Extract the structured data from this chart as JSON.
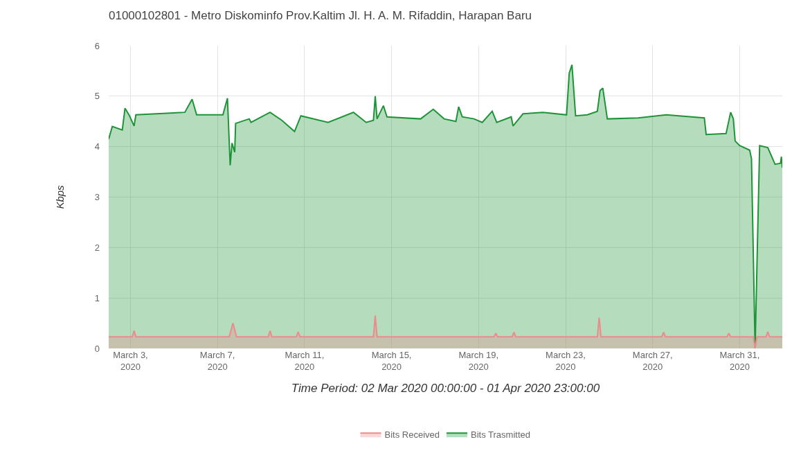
{
  "chart_data": {
    "type": "area",
    "title": "01000102801 - Metro Diskominfo Prov.Kaltim Jl. H. A. M. Rifaddin, Harapan Baru",
    "xlabel": "Time Period: 02 Mar 2020 00:00:00 - 01 Apr 2020 23:00:00",
    "ylabel": "Kbps",
    "xlim": [
      "2020-03-02T00:00",
      "2020-04-01T23:00"
    ],
    "xticks": [
      {
        "value": "2020-03-03",
        "label": "March 3, 2020"
      },
      {
        "value": "2020-03-07",
        "label": "March 7, 2020"
      },
      {
        "value": "2020-03-11",
        "label": "March 11, 2020"
      },
      {
        "value": "2020-03-15",
        "label": "March 15, 2020"
      },
      {
        "value": "2020-03-19",
        "label": "March 19, 2020"
      },
      {
        "value": "2020-03-23",
        "label": "March 23, 2020"
      },
      {
        "value": "2020-03-27",
        "label": "March 27, 2020"
      },
      {
        "value": "2020-03-31",
        "label": "March 31, 2020"
      }
    ],
    "ylim": [
      0,
      6
    ],
    "yticks": [
      0,
      1,
      2,
      3,
      4,
      5,
      6
    ],
    "grid": true,
    "legend": "bottom",
    "series": [
      {
        "name": "Bits Trasmitted",
        "color": "#1e9438",
        "x": [
          "2020-03-02T00:00",
          "2020-03-02T04:00",
          "2020-03-02T15:00",
          "2020-03-02T18:00",
          "2020-03-02T23:00",
          "2020-03-03T04:00",
          "2020-03-03T06:00",
          "2020-03-05T12:00",
          "2020-03-05T20:00",
          "2020-03-06T01:00",
          "2020-03-07T06:00",
          "2020-03-07T11:00",
          "2020-03-07T14:00",
          "2020-03-07T16:00",
          "2020-03-07T19:00",
          "2020-03-07T20:00",
          "2020-03-08T11:00",
          "2020-03-08T13:00",
          "2020-03-09T10:00",
          "2020-03-09T23:00",
          "2020-03-10T13:00",
          "2020-03-10T20:00",
          "2020-03-12T02:00",
          "2020-03-13T06:00",
          "2020-03-13T20:00",
          "2020-03-14T04:00",
          "2020-03-14T06:00",
          "2020-03-14T08:00",
          "2020-03-14T15:00",
          "2020-03-14T19:00",
          "2020-03-16T08:00",
          "2020-03-16T22:00",
          "2020-03-17T10:00",
          "2020-03-17T23:00",
          "2020-03-18T02:00",
          "2020-03-18T06:00",
          "2020-03-18T19:00",
          "2020-03-19T04:00",
          "2020-03-19T15:00",
          "2020-03-19T20:00",
          "2020-03-20T12:00",
          "2020-03-20T14:00",
          "2020-03-21T01:00",
          "2020-03-21T23:00",
          "2020-03-23T01:00",
          "2020-03-23T04:00",
          "2020-03-23T07:00",
          "2020-03-23T11:00",
          "2020-03-24T00:00",
          "2020-03-24T11:00",
          "2020-03-24T14:00",
          "2020-03-24T17:00",
          "2020-03-24T22:00",
          "2020-03-26T08:00",
          "2020-03-27T15:00",
          "2020-03-29T09:00",
          "2020-03-29T11:00",
          "2020-03-30T09:00",
          "2020-03-30T14:00",
          "2020-03-30T17:00",
          "2020-03-30T19:00",
          "2020-03-31T00:00",
          "2020-03-31T11:00",
          "2020-03-31T13:00",
          "2020-03-31T17:00",
          "2020-03-31T22:00",
          "2020-04-01T07:00",
          "2020-04-01T15:00",
          "2020-04-01T21:00",
          "2020-04-01T22:00",
          "2020-04-01T23:00"
        ],
        "values": [
          4.15,
          4.4,
          4.33,
          4.76,
          4.61,
          4.41,
          4.63,
          4.68,
          4.94,
          4.63,
          4.63,
          4.96,
          3.63,
          4.07,
          3.89,
          4.46,
          4.55,
          4.48,
          4.68,
          4.52,
          4.3,
          4.61,
          4.48,
          4.68,
          4.48,
          4.52,
          5.0,
          4.55,
          4.81,
          4.59,
          4.55,
          4.74,
          4.55,
          4.5,
          4.79,
          4.59,
          4.55,
          4.48,
          4.7,
          4.48,
          4.59,
          4.41,
          4.65,
          4.68,
          4.63,
          5.46,
          5.62,
          4.61,
          4.63,
          4.7,
          5.11,
          5.16,
          4.55,
          4.57,
          4.63,
          4.57,
          4.24,
          4.26,
          4.68,
          4.55,
          4.11,
          4.02,
          3.93,
          3.76,
          0,
          4.02,
          3.98,
          3.65,
          3.67,
          3.8,
          3.58
        ]
      },
      {
        "name": "Bits Received",
        "color": "#e88c8c",
        "x": [
          "2020-03-02T00:00",
          "2020-03-03T02:00",
          "2020-03-03T04:00",
          "2020-03-03T06:00",
          "2020-03-07T13:00",
          "2020-03-07T17:00",
          "2020-03-07T21:00",
          "2020-03-09T08:00",
          "2020-03-09T10:00",
          "2020-03-09T12:00",
          "2020-03-10T15:00",
          "2020-03-10T17:00",
          "2020-03-10T19:00",
          "2020-03-14T04:00",
          "2020-03-14T06:00",
          "2020-03-14T08:00",
          "2020-03-19T17:00",
          "2020-03-19T19:00",
          "2020-03-19T21:00",
          "2020-03-20T13:00",
          "2020-03-20T15:00",
          "2020-03-20T17:00",
          "2020-03-24T11:00",
          "2020-03-24T13:00",
          "2020-03-24T15:00",
          "2020-03-27T10:00",
          "2020-03-27T12:00",
          "2020-03-27T14:00",
          "2020-03-30T10:00",
          "2020-03-30T12:00",
          "2020-03-30T14:00",
          "2020-03-31T15:00",
          "2020-03-31T17:00",
          "2020-03-31T19:00",
          "2020-04-01T05:00",
          "2020-04-01T07:00",
          "2020-04-01T09:00",
          "2020-04-01T23:00"
        ],
        "values": [
          0.23,
          0.23,
          0.35,
          0.23,
          0.23,
          0.5,
          0.23,
          0.23,
          0.35,
          0.23,
          0.23,
          0.33,
          0.23,
          0.23,
          0.65,
          0.23,
          0.23,
          0.3,
          0.23,
          0.23,
          0.32,
          0.23,
          0.23,
          0.61,
          0.23,
          0.23,
          0.32,
          0.23,
          0.23,
          0.3,
          0.23,
          0.23,
          0,
          0.23,
          0.23,
          0.33,
          0.23,
          0.23
        ]
      }
    ]
  }
}
